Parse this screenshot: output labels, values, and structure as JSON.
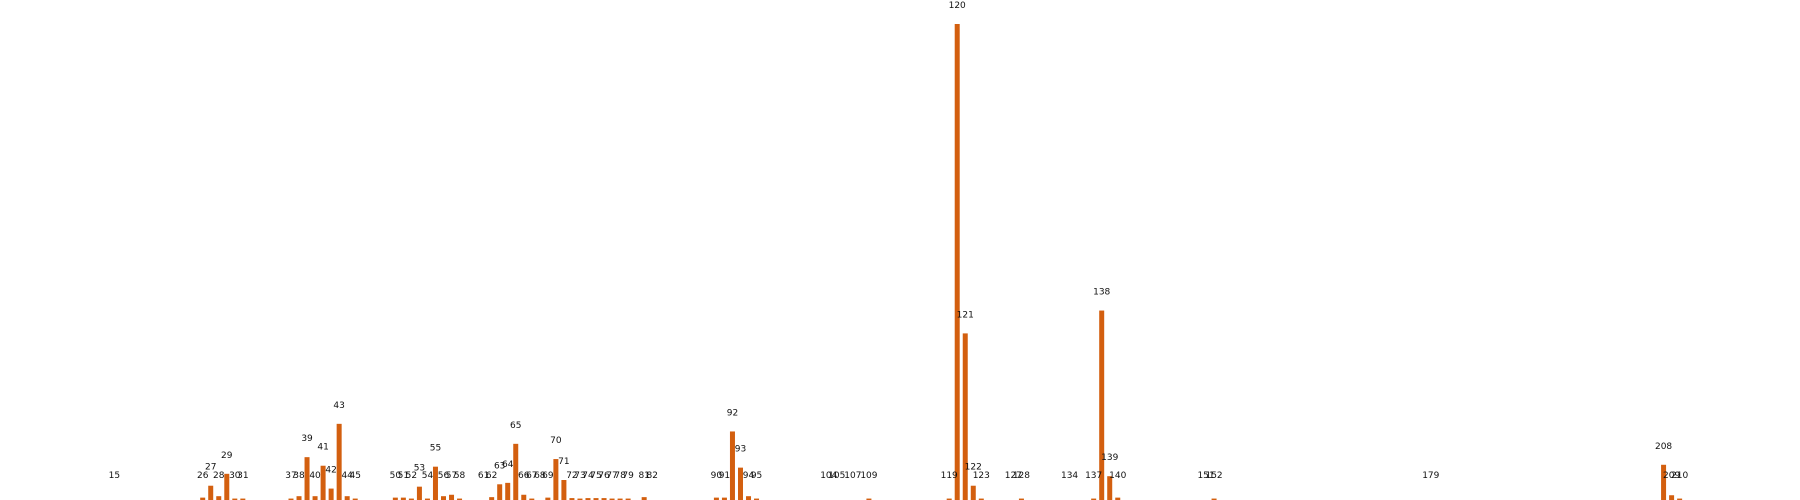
{
  "chart_data": {
    "type": "bar",
    "bar_color": "#d35f0f",
    "xlim": [
      0,
      224
    ],
    "ylim": [
      0,
      100
    ],
    "grid": false,
    "axes_visible": false,
    "categories": [
      "15",
      "26",
      "27",
      "28",
      "29",
      "30",
      "31",
      "37",
      "38",
      "39",
      "40",
      "41",
      "42",
      "43",
      "44",
      "45",
      "50",
      "51",
      "52",
      "53",
      "54",
      "55",
      "56",
      "57",
      "58",
      "61",
      "62",
      "63",
      "64",
      "65",
      "66",
      "67",
      "68",
      "69",
      "70",
      "71",
      "72",
      "73",
      "74",
      "75",
      "76",
      "77",
      "78",
      "79",
      "81",
      "82",
      "90",
      "91",
      "92",
      "93",
      "94",
      "95",
      "104",
      "105",
      "107",
      "109",
      "119",
      "120",
      "121",
      "122",
      "123",
      "127",
      "128",
      "134",
      "137",
      "138",
      "139",
      "140",
      "151",
      "152",
      "179",
      "208",
      "209",
      "210"
    ],
    "values": [
      0.0,
      0.5,
      3.0,
      0.8,
      5.5,
      0.3,
      0.3,
      0.3,
      0.8,
      9.0,
      0.8,
      7.2,
      2.4,
      16.0,
      0.8,
      0.3,
      0.5,
      0.5,
      0.3,
      2.8,
      0.3,
      7.0,
      0.8,
      1.1,
      0.3,
      0.0,
      0.6,
      3.3,
      3.6,
      11.8,
      1.1,
      0.3,
      0.0,
      0.5,
      8.6,
      4.2,
      0.4,
      0.3,
      0.4,
      0.4,
      0.4,
      0.3,
      0.3,
      0.3,
      0.6,
      0.0,
      0.5,
      0.5,
      14.4,
      6.8,
      0.8,
      0.3,
      0.0,
      0.0,
      0.0,
      0.3,
      0.3,
      100.0,
      35.0,
      3.0,
      0.3,
      0.0,
      0.3,
      0.0,
      0.3,
      39.8,
      5.0,
      0.5,
      0.0,
      0.3,
      0.0,
      7.4,
      1.0,
      0.3
    ]
  }
}
